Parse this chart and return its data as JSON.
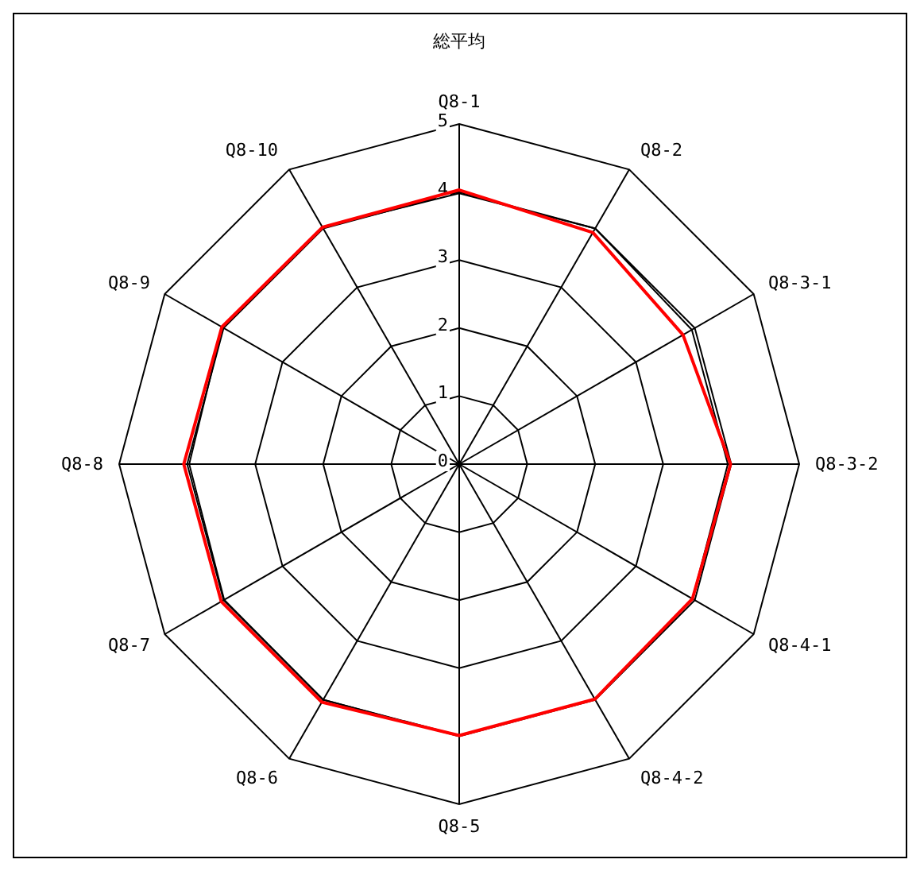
{
  "chart_data": {
    "type": "radar",
    "title": "総平均",
    "categories": [
      "Q8-1",
      "Q8-2",
      "Q8-3-1",
      "Q8-3-2",
      "Q8-4-1",
      "Q8-4-2",
      "Q8-5",
      "Q8-6",
      "Q8-7",
      "Q8-8",
      "Q8-9",
      "Q8-10"
    ],
    "ylim": [
      0,
      5
    ],
    "yticks": [
      0,
      1,
      2,
      3,
      4,
      5
    ],
    "series": [
      {
        "color": "#000000",
        "values": [
          3.98,
          4.0,
          3.95,
          3.95,
          3.96,
          3.99,
          3.99,
          4.0,
          3.99,
          3.97,
          4.02,
          4.02
        ]
      },
      {
        "color": "#ff0000",
        "values": [
          4.03,
          3.93,
          3.8,
          3.99,
          3.96,
          3.99,
          3.99,
          4.04,
          4.04,
          4.05,
          4.03,
          4.02
        ]
      }
    ]
  }
}
